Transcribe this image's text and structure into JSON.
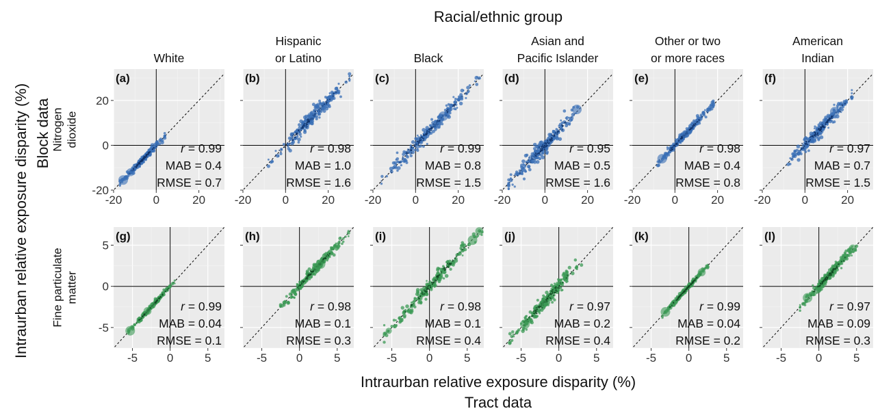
{
  "top_title": "Racial/ethnic group",
  "y_title": [
    "Intraurban relative exposure disparity (%)",
    "Block data"
  ],
  "x_title": [
    "Intraurban relative exposure disparity (%)",
    "Tract data"
  ],
  "columns": [
    [
      "White"
    ],
    [
      "Hispanic",
      "or Latino"
    ],
    [
      "Black"
    ],
    [
      "Asian and",
      "Pacific Islander"
    ],
    [
      "Other or two",
      "or more races"
    ],
    [
      "American",
      "Indian"
    ]
  ],
  "rows": [
    {
      "label": [
        "Nitrogen",
        "dioxide"
      ],
      "color": "#3a6fb5",
      "dark": "#0d2f66",
      "xlim": [
        -20,
        32
      ],
      "ylim": [
        -20,
        34
      ],
      "ticks": [
        -20,
        0,
        20
      ],
      "yticks": [
        -20,
        0,
        20
      ]
    },
    {
      "label": [
        "Fine particulate",
        "matter"
      ],
      "color": "#3c9a55",
      "dark": "#104a22",
      "xlim": [
        -7.5,
        7.2
      ],
      "ylim": [
        -7.5,
        7.2
      ],
      "ticks": [
        -5,
        0,
        5
      ],
      "yticks": [
        -5,
        0,
        5
      ]
    }
  ],
  "chart_data": [
    {
      "type": "scatter",
      "panel": "(a)",
      "pollutant": "Nitrogen dioxide",
      "group": "White",
      "r": "0.99",
      "MAB": "0.4",
      "RMSE": "0.7",
      "range": [
        -17,
        4
      ],
      "spread": 0.7,
      "big": [
        [
          -15.5,
          -15.5
        ],
        [
          -12,
          -12
        ]
      ]
    },
    {
      "type": "scatter",
      "panel": "(b)",
      "pollutant": "Nitrogen dioxide",
      "group": "Hispanic or Latino",
      "r": "0.98",
      "MAB": "1.0",
      "RMSE": "1.6",
      "range": [
        -8,
        30
      ],
      "spread": 1.6,
      "big": [
        [
          16,
          17
        ],
        [
          12,
          13
        ]
      ]
    },
    {
      "type": "scatter",
      "panel": "(c)",
      "pollutant": "Nitrogen dioxide",
      "group": "Black",
      "r": "0.99",
      "MAB": "0.8",
      "RMSE": "1.5",
      "range": [
        -16,
        30
      ],
      "spread": 1.5,
      "big": [
        [
          13,
          13
        ],
        [
          10,
          9
        ]
      ]
    },
    {
      "type": "scatter",
      "panel": "(d)",
      "pollutant": "Nitrogen dioxide",
      "group": "Asian and Pacific Islander",
      "r": "0.95",
      "MAB": "0.5",
      "RMSE": "1.6",
      "range": [
        -17,
        16
      ],
      "spread": 1.8,
      "big": [
        [
          15,
          16
        ],
        [
          -6,
          -6
        ]
      ]
    },
    {
      "type": "scatter",
      "panel": "(e)",
      "pollutant": "Nitrogen dioxide",
      "group": "Other or two or more races",
      "r": "0.98",
      "MAB": "0.4",
      "RMSE": "0.8",
      "range": [
        -8,
        18
      ],
      "spread": 0.9,
      "big": [
        [
          -6,
          -6
        ],
        [
          5,
          5
        ]
      ]
    },
    {
      "type": "scatter",
      "panel": "(f)",
      "pollutant": "Nitrogen dioxide",
      "group": "American Indian",
      "r": "0.97",
      "MAB": "0.7",
      "RMSE": "1.5",
      "range": [
        -8,
        22
      ],
      "spread": 1.5,
      "big": [
        [
          14,
          15
        ]
      ]
    },
    {
      "type": "scatter",
      "panel": "(g)",
      "pollutant": "Fine particulate matter",
      "group": "White",
      "r": "0.99",
      "MAB": "0.04",
      "RMSE": "0.1",
      "range": [
        -5.5,
        0.6
      ],
      "spread": 0.12,
      "big": [
        [
          -5.3,
          -5.4
        ],
        [
          -3,
          -3
        ],
        [
          -2.3,
          -2.3
        ]
      ]
    },
    {
      "type": "scatter",
      "panel": "(h)",
      "pollutant": "Fine particulate matter",
      "group": "Hispanic or Latino",
      "r": "0.98",
      "MAB": "0.1",
      "RMSE": "0.3",
      "range": [
        -2.5,
        6.5
      ],
      "spread": 0.3,
      "big": [
        [
          2.8,
          2.7
        ],
        [
          2.2,
          2.3
        ]
      ]
    },
    {
      "type": "scatter",
      "panel": "(i)",
      "pollutant": "Fine particulate matter",
      "group": "Black",
      "r": "0.98",
      "MAB": "0.1",
      "RMSE": "0.4",
      "range": [
        -6,
        7
      ],
      "spread": 0.4,
      "big": [
        [
          5.7,
          5.6
        ],
        [
          6.6,
          6.7
        ],
        [
          -5.4,
          -5.4
        ]
      ]
    },
    {
      "type": "scatter",
      "panel": "(j)",
      "pollutant": "Fine particulate matter",
      "group": "Asian and Pacific Islander",
      "r": "0.97",
      "MAB": "0.2",
      "RMSE": "0.4",
      "range": [
        -6.5,
        3
      ],
      "spread": 0.45,
      "big": [
        [
          -4.5,
          -4.6
        ],
        [
          -2,
          -2.1
        ]
      ]
    },
    {
      "type": "scatter",
      "panel": "(k)",
      "pollutant": "Fine particulate matter",
      "group": "Other or two or more races",
      "r": "0.99",
      "MAB": "0.04",
      "RMSE": "0.2",
      "range": [
        -3.5,
        2.5
      ],
      "spread": 0.15,
      "big": [
        [
          -3.1,
          -3.1
        ],
        [
          1.7,
          1.7
        ]
      ]
    },
    {
      "type": "scatter",
      "panel": "(l)",
      "pollutant": "Fine particulate matter",
      "group": "American Indian",
      "r": "0.97",
      "MAB": "0.09",
      "RMSE": "0.3",
      "range": [
        -2.5,
        5
      ],
      "spread": 0.3,
      "big": [
        [
          -1.5,
          -1.4
        ],
        [
          4.5,
          4.6
        ]
      ]
    }
  ]
}
